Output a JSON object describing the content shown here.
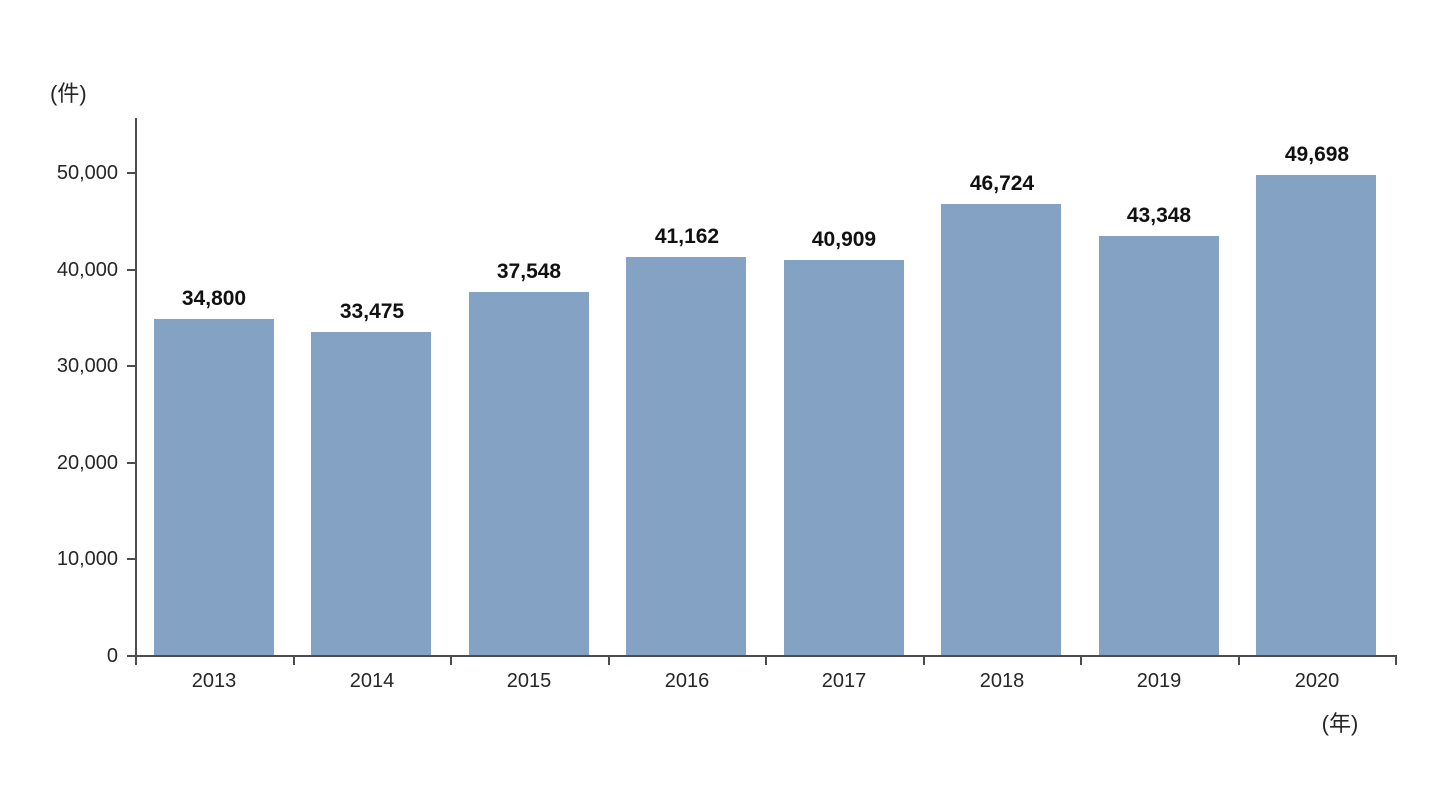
{
  "chart_data": {
    "type": "bar",
    "title": "",
    "categories": [
      "2013",
      "2014",
      "2015",
      "2016",
      "2017",
      "2018",
      "2019",
      "2020"
    ],
    "values": [
      34800,
      33475,
      37548,
      41162,
      40909,
      46724,
      43348,
      49698
    ],
    "value_labels": [
      "34,800",
      "33,475",
      "37,548",
      "41,162",
      "40,909",
      "46,724",
      "43,348",
      "49,698"
    ],
    "y_axis_unit": "(件)",
    "x_axis_unit": "(年)",
    "yticks": [
      0,
      10000,
      20000,
      30000,
      40000,
      50000
    ],
    "ytick_labels": [
      "0",
      "10,000",
      "20,000",
      "30,000",
      "40,000",
      "50,000"
    ],
    "ylim": [
      0,
      55600
    ],
    "grid": false,
    "legend_position": "none",
    "bar_color": "#83A2C4",
    "axis_color": "#4D4D4D",
    "tick_label_color": "#262626",
    "value_label_color": "#111111",
    "background_color": "#FFFFFF"
  }
}
